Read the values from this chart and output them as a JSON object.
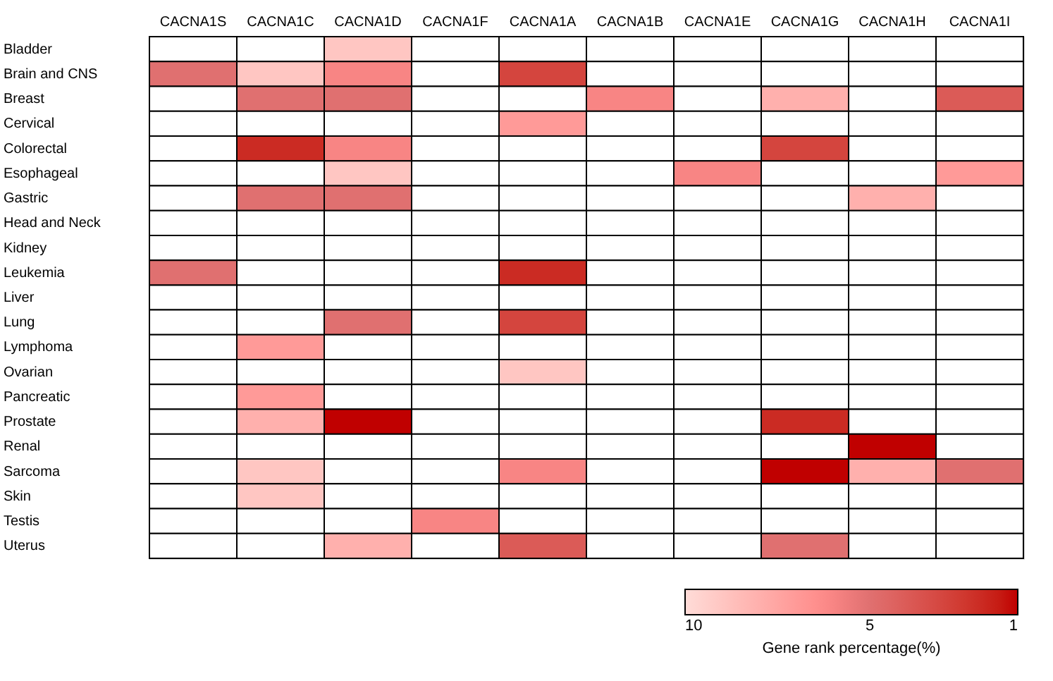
{
  "chart_data": {
    "type": "heatmap",
    "clabel": "Gene rank percentage(%)",
    "cticks": [
      10,
      5,
      1
    ],
    "categories": [
      "CACNA1S",
      "CACNA1C",
      "CACNA1D",
      "CACNA1F",
      "CACNA1A",
      "CACNA1B",
      "CACNA1E",
      "CACNA1G",
      "CACNA1H",
      "CACNA1I"
    ],
    "y_categories": [
      "Bladder",
      "Brain and CNS",
      "Breast",
      "Cervical",
      "Colorectal",
      "Esophageal",
      "Gastric",
      "Head and Neck",
      "Kidney",
      "Leukemia",
      "Liver",
      "Lung",
      "Lymphoma",
      "Ovarian",
      "Pancreatic",
      "Prostate",
      "Renal",
      "Sarcoma",
      "Skin",
      "Testis",
      "Uterus"
    ],
    "cells": [
      [
        null,
        null,
        9,
        null,
        null,
        null,
        null,
        null,
        null,
        null
      ],
      [
        5,
        9,
        6,
        null,
        3,
        null,
        null,
        null,
        null,
        null
      ],
      [
        null,
        5,
        5,
        null,
        null,
        6,
        null,
        8,
        null,
        4
      ],
      [
        null,
        null,
        null,
        null,
        7,
        null,
        null,
        null,
        null,
        null
      ],
      [
        null,
        2,
        6,
        null,
        null,
        null,
        null,
        3,
        null,
        null
      ],
      [
        null,
        null,
        9,
        null,
        null,
        null,
        6,
        null,
        null,
        7
      ],
      [
        null,
        5,
        5,
        null,
        null,
        null,
        null,
        null,
        8,
        null
      ],
      [
        null,
        null,
        null,
        null,
        null,
        null,
        null,
        null,
        null,
        null
      ],
      [
        null,
        null,
        null,
        null,
        null,
        null,
        null,
        null,
        null,
        null
      ],
      [
        5,
        null,
        null,
        null,
        2,
        null,
        null,
        null,
        null,
        null
      ],
      [
        null,
        null,
        null,
        null,
        null,
        null,
        null,
        null,
        null,
        null
      ],
      [
        null,
        null,
        5,
        null,
        3,
        null,
        null,
        null,
        null,
        null
      ],
      [
        null,
        7,
        null,
        null,
        null,
        null,
        null,
        null,
        null,
        null
      ],
      [
        null,
        null,
        null,
        null,
        9,
        null,
        null,
        null,
        null,
        null
      ],
      [
        null,
        7,
        null,
        null,
        null,
        null,
        null,
        null,
        null,
        null
      ],
      [
        null,
        8,
        1,
        null,
        null,
        null,
        null,
        2,
        null,
        null
      ],
      [
        null,
        null,
        null,
        null,
        null,
        null,
        null,
        null,
        1,
        null
      ],
      [
        null,
        9,
        null,
        null,
        6,
        null,
        null,
        1,
        8,
        5
      ],
      [
        null,
        9,
        null,
        null,
        null,
        null,
        null,
        null,
        null,
        null
      ],
      [
        null,
        null,
        null,
        6,
        null,
        null,
        null,
        null,
        null,
        null
      ],
      [
        null,
        null,
        8,
        null,
        4,
        null,
        null,
        5,
        null,
        null
      ]
    ]
  }
}
